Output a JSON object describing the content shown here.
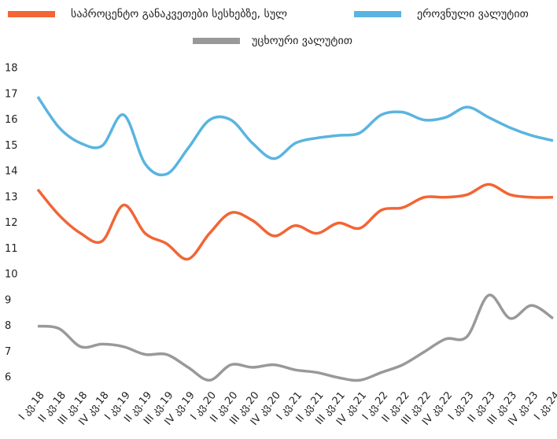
{
  "chart_data": {
    "type": "line",
    "categories": [
      "I კვ.18",
      "II კვ.18",
      "III კვ.18",
      "IV კვ.18",
      "I კვ.19",
      "II კვ.19",
      "III კვ.19",
      "IV კვ.19",
      "I კვ.20",
      "II კვ.20",
      "III კვ.20",
      "IV კვ.20",
      "I კვ.21",
      "II კვ.21",
      "III კვ.21",
      "IV კვ.21",
      "I კვ.22",
      "II კვ.22",
      "III კვ.22",
      "IV კვ.22",
      "I კვ.23",
      "II კვ.23",
      "III კვ.23",
      "IV კვ.23",
      "I კვ.24"
    ],
    "series": [
      {
        "name": "საპროცენტო განაკვეთები სესხებზე, სულ",
        "color": "#f26535",
        "values": [
          13.3,
          12.3,
          11.6,
          11.3,
          12.7,
          11.6,
          11.2,
          10.6,
          11.6,
          12.4,
          12.1,
          11.5,
          11.9,
          11.6,
          12.0,
          11.8,
          12.5,
          12.6,
          13.0,
          13.0,
          13.1,
          13.5,
          13.1,
          13.0,
          13.0
        ]
      },
      {
        "name": "ეროვნული ვალუტით",
        "color": "#5ab4e0",
        "values": [
          16.9,
          15.7,
          15.1,
          15.0,
          16.2,
          14.3,
          13.9,
          14.9,
          16.0,
          16.0,
          15.1,
          14.5,
          15.1,
          15.3,
          15.4,
          15.5,
          16.2,
          16.3,
          16.0,
          16.1,
          16.5,
          16.1,
          15.7,
          15.4,
          15.2
        ]
      },
      {
        "name": "უცხოური ვალუტით",
        "color": "#999999",
        "values": [
          8.0,
          7.9,
          7.2,
          7.3,
          7.2,
          6.9,
          6.9,
          6.4,
          5.9,
          6.5,
          6.4,
          6.5,
          6.3,
          6.2,
          6.0,
          5.9,
          6.2,
          6.5,
          7.0,
          7.5,
          7.6,
          9.2,
          8.3,
          8.8,
          8.3
        ]
      }
    ],
    "ylim": [
      6,
      18
    ],
    "yticks": [
      6,
      7,
      8,
      9,
      10,
      11,
      12,
      13,
      14,
      15,
      16,
      17,
      18
    ]
  }
}
